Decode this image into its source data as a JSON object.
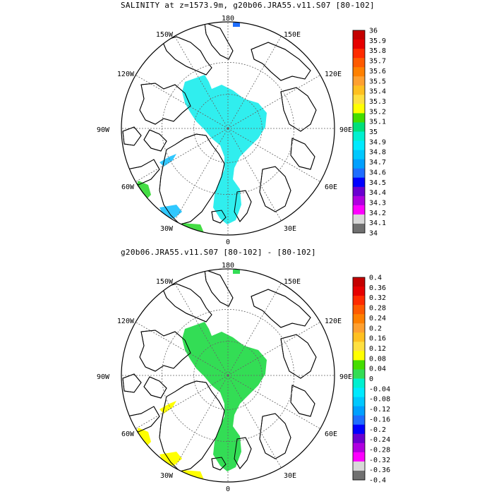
{
  "panel1": {
    "title": "SALINITY at z=1573.9m, g20b06.JRA55.v11.S07 [80-102]",
    "labels": {
      "top": "180",
      "bottom": "0",
      "left": "90W",
      "right": "90E",
      "ul": "150W",
      "ur": "150E",
      "ul2": "120W",
      "ur2": "120E",
      "ll": "60W",
      "lr": "60E",
      "ll2": "30W",
      "lr2": "30E"
    },
    "colorbar": {
      "labels": [
        "36",
        "35.9",
        "35.8",
        "35.7",
        "35.6",
        "35.5",
        "35.4",
        "35.3",
        "35.2",
        "35.1",
        "35",
        "34.9",
        "34.8",
        "34.7",
        "34.6",
        "34.5",
        "34.4",
        "34.3",
        "34.2",
        "34.1",
        "34"
      ],
      "colors": [
        "#c40000",
        "#e60000",
        "#ff2b00",
        "#ff5a00",
        "#ff8000",
        "#ffa030",
        "#ffc020",
        "#ffe040",
        "#ffff00",
        "#44dd00",
        "#00e07a",
        "#00f0d0",
        "#00eaff",
        "#00c8ff",
        "#00a0ff",
        "#1e6eff",
        "#0000ff",
        "#6a00d0",
        "#b000e0",
        "#ff00ff",
        "#d8d8d8",
        "#707070"
      ]
    },
    "fill_colors": {
      "main": "#30eeee",
      "atlantic_cell": "#44dd44",
      "labrador": "#30c8ff",
      "pacific_tip": "#1e6eff"
    }
  },
  "panel2": {
    "title": "g20b06.JRA55.v11.S07 [80-102] -  [80-102]",
    "labels": {
      "top": "180",
      "bottom": "0",
      "left": "90W",
      "right": "90E",
      "ul": "150W",
      "ur": "150E",
      "ul2": "120W",
      "ur2": "120E",
      "ll": "60W",
      "lr": "60E",
      "ll2": "30W",
      "lr2": "30E"
    },
    "colorbar": {
      "labels": [
        "0.4",
        "0.36",
        "0.32",
        "0.28",
        "0.24",
        "0.2",
        "0.16",
        "0.12",
        "0.08",
        "0.04",
        "0",
        "-0.04",
        "-0.08",
        "-0.12",
        "-0.16",
        "-0.2",
        "-0.24",
        "-0.28",
        "-0.32",
        "-0.36",
        "-0.4"
      ],
      "colors": [
        "#c40000",
        "#e60000",
        "#ff2b00",
        "#ff5a00",
        "#ff8000",
        "#ffa030",
        "#ffc020",
        "#ffe040",
        "#ffff00",
        "#44dd00",
        "#33dd55",
        "#00f0d0",
        "#00eaff",
        "#00c8ff",
        "#00a0ff",
        "#1e6eff",
        "#0000ff",
        "#6a00d0",
        "#b000e0",
        "#ff00ff",
        "#d8d8d8",
        "#707070"
      ]
    },
    "fill_colors": {
      "main": "#33dd55",
      "labrador": "#ffff00",
      "atlantic_cell": "#ffff00",
      "pacific_tip": "#33dd55"
    }
  }
}
